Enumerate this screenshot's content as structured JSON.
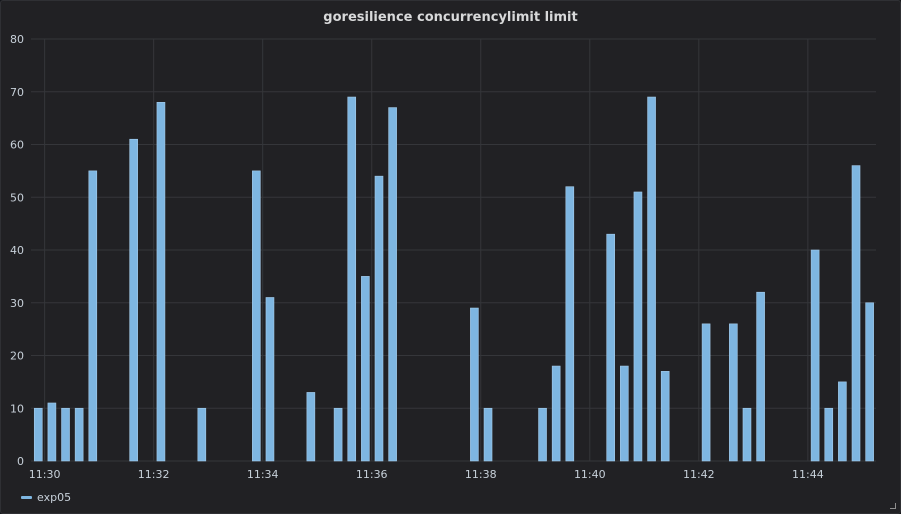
{
  "panel": {
    "title": "goresilience concurrencylimit limit"
  },
  "chart_data": {
    "type": "bar",
    "title": "goresilience concurrencylimit limit",
    "xlabel": "",
    "ylabel": "",
    "ylim": [
      0,
      80
    ],
    "yticks": [
      0,
      10,
      20,
      30,
      40,
      50,
      60,
      70,
      80
    ],
    "xticks": [
      "11:30",
      "11:32",
      "11:34",
      "11:36",
      "11:38",
      "11:40",
      "11:42",
      "11:44"
    ],
    "xlim": [
      "11:29:45",
      "11:45:15"
    ],
    "grid": true,
    "legend_position": "bottom-left",
    "series": [
      {
        "name": "exp05",
        "color": "#7eb6e1",
        "points": [
          {
            "t": "11:29:53",
            "v": 10
          },
          {
            "t": "11:30:08",
            "v": 11
          },
          {
            "t": "11:30:23",
            "v": 10
          },
          {
            "t": "11:30:38",
            "v": 10
          },
          {
            "t": "11:30:53",
            "v": 55
          },
          {
            "t": "11:31:38",
            "v": 61
          },
          {
            "t": "11:32:08",
            "v": 68
          },
          {
            "t": "11:32:53",
            "v": 10
          },
          {
            "t": "11:33:53",
            "v": 55
          },
          {
            "t": "11:34:08",
            "v": 31
          },
          {
            "t": "11:34:53",
            "v": 13
          },
          {
            "t": "11:35:23",
            "v": 10
          },
          {
            "t": "11:35:38",
            "v": 69
          },
          {
            "t": "11:35:53",
            "v": 35
          },
          {
            "t": "11:36:08",
            "v": 54
          },
          {
            "t": "11:36:23",
            "v": 67
          },
          {
            "t": "11:37:53",
            "v": 29
          },
          {
            "t": "11:38:08",
            "v": 10
          },
          {
            "t": "11:39:08",
            "v": 10
          },
          {
            "t": "11:39:23",
            "v": 18
          },
          {
            "t": "11:39:38",
            "v": 52
          },
          {
            "t": "11:40:23",
            "v": 43
          },
          {
            "t": "11:40:38",
            "v": 18
          },
          {
            "t": "11:40:53",
            "v": 51
          },
          {
            "t": "11:41:08",
            "v": 69
          },
          {
            "t": "11:41:23",
            "v": 17
          },
          {
            "t": "11:42:08",
            "v": 26
          },
          {
            "t": "11:42:38",
            "v": 26
          },
          {
            "t": "11:42:53",
            "v": 10
          },
          {
            "t": "11:43:08",
            "v": 32
          },
          {
            "t": "11:44:08",
            "v": 40
          },
          {
            "t": "11:44:23",
            "v": 10
          },
          {
            "t": "11:44:38",
            "v": 15
          },
          {
            "t": "11:44:53",
            "v": 56
          },
          {
            "t": "11:45:08",
            "v": 30
          }
        ]
      }
    ]
  }
}
